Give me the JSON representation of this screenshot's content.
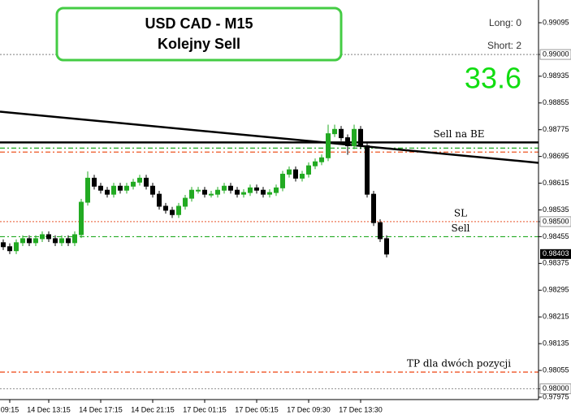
{
  "chart_data": {
    "type": "candlestick",
    "title": "USD CAD - M15",
    "subtitle": "Kolejny Sell",
    "annotations": {
      "long": "Long: 0",
      "short": "Short: 2",
      "score": "33.6"
    },
    "categories": [
      null,
      "09:15",
      null,
      null,
      null,
      null,
      null,
      "14 Dec 13:15",
      null,
      null,
      null,
      null,
      null,
      null,
      null,
      "14 Dec 17:15",
      null,
      null,
      null,
      null,
      null,
      null,
      null,
      "14 Dec 21:15",
      null,
      null,
      null,
      null,
      null,
      null,
      null,
      "17 Dec 01:15",
      null,
      null,
      null,
      null,
      null,
      null,
      null,
      "17 Dec 05:15",
      null,
      null,
      null,
      null,
      null,
      null,
      null,
      "17 Dec 09:30",
      null,
      null,
      null,
      null,
      null,
      null,
      null,
      "17 Dec 13:30",
      null,
      null,
      null,
      null
    ],
    "open": [
      0.98437,
      0.98425,
      0.98413,
      0.98437,
      0.98449,
      0.98437,
      0.98449,
      0.98461,
      0.98449,
      0.98437,
      0.98449,
      0.98437,
      0.98461,
      0.98558,
      0.9863,
      0.98606,
      0.98594,
      0.98582,
      0.98606,
      0.98594,
      0.98606,
      0.98618,
      0.9863,
      0.98606,
      0.98582,
      0.98546,
      0.98534,
      0.98521,
      0.98546,
      0.9857,
      0.98594,
      0.98594,
      0.98582,
      0.98582,
      0.98594,
      0.98606,
      0.98594,
      0.98582,
      0.98587,
      0.98601,
      0.98594,
      0.98582,
      0.98587,
      0.98601,
      0.98642,
      0.98655,
      0.9863,
      0.98642,
      0.98667,
      0.98679,
      0.98691,
      0.98763,
      0.98776,
      0.98751,
      0.98727,
      0.98776,
      0.98727,
      0.98582,
      0.98497,
      0.98449
    ],
    "high": [
      0.98447,
      0.98435,
      0.98447,
      0.98459,
      0.98459,
      0.98459,
      0.98471,
      0.98471,
      0.98459,
      0.98459,
      0.98459,
      0.98471,
      0.98568,
      0.9865,
      0.9864,
      0.98616,
      0.98604,
      0.98616,
      0.98616,
      0.98616,
      0.98628,
      0.9864,
      0.9864,
      0.98616,
      0.98592,
      0.98556,
      0.98544,
      0.98556,
      0.9858,
      0.98604,
      0.98604,
      0.98604,
      0.98592,
      0.98604,
      0.98616,
      0.98616,
      0.98604,
      0.98597,
      0.98611,
      0.98611,
      0.98604,
      0.98597,
      0.98611,
      0.98652,
      0.98665,
      0.98665,
      0.98652,
      0.98677,
      0.98689,
      0.98701,
      0.9879,
      0.9879,
      0.98786,
      0.98761,
      0.9879,
      0.98786,
      0.98737,
      0.98592,
      0.98507,
      0.98459
    ],
    "low": [
      0.98415,
      0.98403,
      0.98403,
      0.98427,
      0.98427,
      0.98427,
      0.98439,
      0.98439,
      0.98427,
      0.98427,
      0.98427,
      0.98427,
      0.98451,
      0.98548,
      0.98596,
      0.98584,
      0.98572,
      0.98572,
      0.98584,
      0.98584,
      0.98596,
      0.98608,
      0.98596,
      0.98572,
      0.98536,
      0.98524,
      0.98511,
      0.98511,
      0.98536,
      0.9856,
      0.98584,
      0.98572,
      0.98572,
      0.98572,
      0.98584,
      0.98584,
      0.98572,
      0.98572,
      0.98577,
      0.98584,
      0.98572,
      0.98572,
      0.98577,
      0.98591,
      0.98632,
      0.9862,
      0.9862,
      0.98632,
      0.98657,
      0.98669,
      0.98681,
      0.98753,
      0.98741,
      0.987,
      0.98717,
      0.98717,
      0.98572,
      0.98487,
      0.98439,
      0.98393
    ],
    "close": [
      0.98425,
      0.98413,
      0.98437,
      0.98449,
      0.98437,
      0.98449,
      0.98461,
      0.98449,
      0.98437,
      0.98449,
      0.98437,
      0.98461,
      0.98558,
      0.9863,
      0.98606,
      0.98594,
      0.98582,
      0.98606,
      0.98594,
      0.98606,
      0.98618,
      0.9863,
      0.98606,
      0.98582,
      0.98546,
      0.98534,
      0.98521,
      0.98546,
      0.9857,
      0.98594,
      0.98594,
      0.98582,
      0.98582,
      0.98594,
      0.98606,
      0.98594,
      0.98582,
      0.98587,
      0.98601,
      0.98594,
      0.98582,
      0.98587,
      0.98601,
      0.98642,
      0.98655,
      0.9863,
      0.98642,
      0.98667,
      0.98679,
      0.98691,
      0.98763,
      0.98776,
      0.98751,
      0.98727,
      0.98776,
      0.98727,
      0.98582,
      0.98497,
      0.98449,
      0.98403
    ],
    "up_color": "#22aa22",
    "down_color": "#000000",
    "ylim": [
      0.97975,
      0.99163
    ],
    "yticks": [
      0.99095,
      {
        "value": 0.99,
        "label": "0.99000"
      },
      0.98935,
      0.98855,
      0.98775,
      0.98695,
      0.98615,
      0.98535,
      {
        "value": 0.985,
        "label": "0.98500"
      },
      0.98455,
      0.98375,
      0.98295,
      0.98215,
      0.98135,
      0.98055,
      {
        "value": 0.98,
        "label": "0.98000"
      },
      0.97975
    ],
    "levels": [
      {
        "value": 0.99,
        "color": "#999999",
        "style": "dotted"
      },
      {
        "name": "Sell na BE",
        "value": 0.98737,
        "color": "#000000",
        "style": "solid"
      },
      {
        "value": 0.9872,
        "color": "#22aa22",
        "style": "dashdot"
      },
      {
        "value": 0.98708,
        "color": "#ee5522",
        "style": "dashdot"
      },
      {
        "name": "SL",
        "value": 0.985,
        "color": "#ee7755",
        "style": "dotted"
      },
      {
        "name": "Sell",
        "value": 0.98455,
        "color": "#22aa22",
        "style": "dashdot"
      },
      {
        "name": "TP dla dwóch pozycji",
        "value": 0.9805,
        "color": "#ee4411",
        "style": "dashdot"
      },
      {
        "value": 0.98,
        "color": "#999999",
        "style": "dotted"
      }
    ],
    "trendline": {
      "start": 0.98829,
      "end": 0.98676,
      "color": "#000000"
    }
  }
}
